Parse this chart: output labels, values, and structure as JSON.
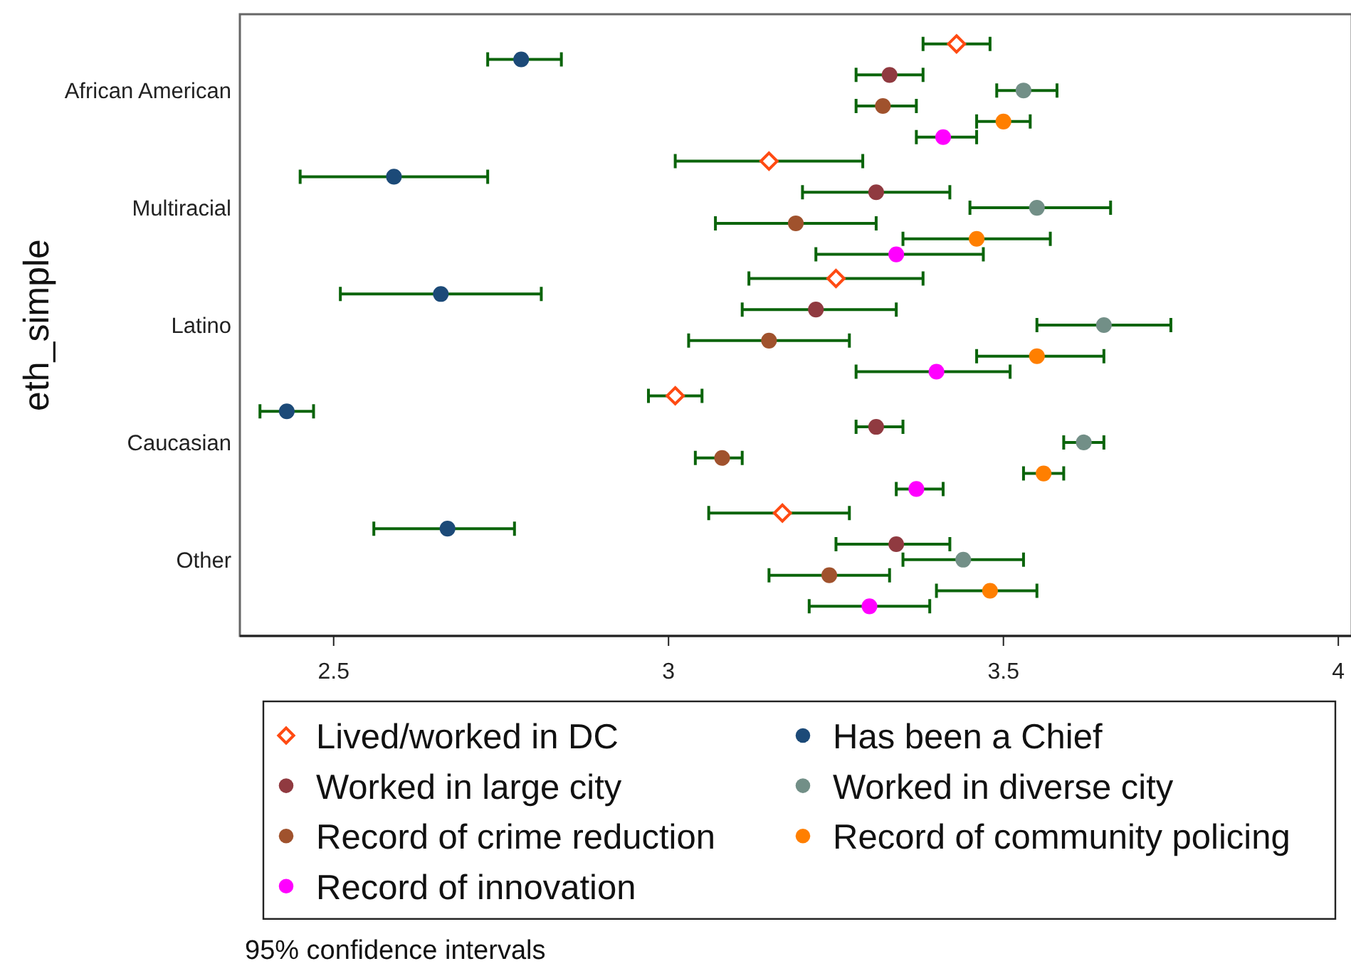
{
  "chart_data": {
    "type": "scatter",
    "orientation": "horizontal",
    "ylabel": "eth_simple",
    "categories": [
      "African American",
      "Multiracial",
      "Latino",
      "Caucasian",
      "Other"
    ],
    "xlim": [
      2.36,
      4.02
    ],
    "xticks": [
      2.5,
      3,
      3.5,
      4
    ],
    "legend": "bottom",
    "annotations": [
      "95% confidence intervals"
    ],
    "series": [
      {
        "name": "Lived/worked in DC",
        "color": "#ff4a12",
        "marker": "diamond",
        "values": [
          3.43,
          3.15,
          3.25,
          3.01,
          3.17
        ],
        "errors": [
          [
            3.38,
            3.48
          ],
          [
            3.01,
            3.29
          ],
          [
            3.12,
            3.38
          ],
          [
            2.97,
            3.05
          ],
          [
            3.06,
            3.27
          ]
        ]
      },
      {
        "name": "Has been a Chief",
        "color": "#1c4a78",
        "marker": "circle",
        "values": [
          2.78,
          2.59,
          2.66,
          2.43,
          2.67
        ],
        "errors": [
          [
            2.73,
            2.84
          ],
          [
            2.45,
            2.73
          ],
          [
            2.51,
            2.81
          ],
          [
            2.39,
            2.47
          ],
          [
            2.56,
            2.77
          ]
        ]
      },
      {
        "name": "Worked in large city",
        "color": "#903a40",
        "marker": "circle",
        "values": [
          3.33,
          3.31,
          3.22,
          3.31,
          3.34
        ],
        "errors": [
          [
            3.28,
            3.38
          ],
          [
            3.2,
            3.42
          ],
          [
            3.11,
            3.34
          ],
          [
            3.28,
            3.35
          ],
          [
            3.25,
            3.42
          ]
        ]
      },
      {
        "name": "Worked in diverse city",
        "color": "#728f87",
        "marker": "circle",
        "values": [
          3.53,
          3.55,
          3.65,
          3.62,
          3.44
        ],
        "errors": [
          [
            3.49,
            3.58
          ],
          [
            3.45,
            3.66
          ],
          [
            3.55,
            3.75
          ],
          [
            3.59,
            3.65
          ],
          [
            3.35,
            3.53
          ]
        ]
      },
      {
        "name": "Record of crime reduction",
        "color": "#a0522d",
        "marker": "circle",
        "values": [
          3.32,
          3.19,
          3.15,
          3.08,
          3.24
        ],
        "errors": [
          [
            3.28,
            3.37
          ],
          [
            3.07,
            3.31
          ],
          [
            3.03,
            3.27
          ],
          [
            3.04,
            3.11
          ],
          [
            3.15,
            3.33
          ]
        ]
      },
      {
        "name": "Record of community policing",
        "color": "#ff7f00",
        "marker": "circle",
        "values": [
          3.5,
          3.46,
          3.55,
          3.56,
          3.48
        ],
        "errors": [
          [
            3.46,
            3.54
          ],
          [
            3.35,
            3.57
          ],
          [
            3.46,
            3.65
          ],
          [
            3.53,
            3.59
          ],
          [
            3.4,
            3.55
          ]
        ]
      },
      {
        "name": "Record of innovation",
        "color": "#ff00ff",
        "marker": "circle",
        "values": [
          3.41,
          3.34,
          3.4,
          3.37,
          3.3
        ],
        "errors": [
          [
            3.37,
            3.46
          ],
          [
            3.22,
            3.47
          ],
          [
            3.28,
            3.51
          ],
          [
            3.34,
            3.41
          ],
          [
            3.21,
            3.39
          ]
        ]
      }
    ]
  }
}
